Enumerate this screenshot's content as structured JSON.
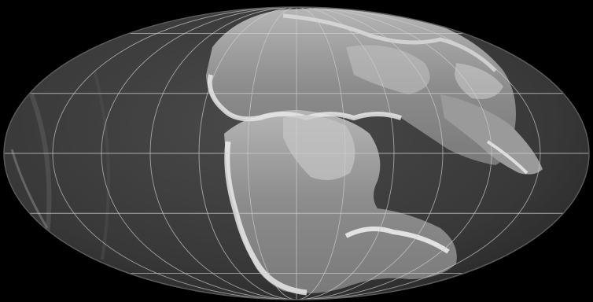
{
  "map": {
    "projection": "mollweide",
    "background_color": "#000000",
    "ocean_color": "#3a3a3a",
    "land_color": "#8a8a8a",
    "coast_highlight_color": "#e6e6e6",
    "graticule_color": "#cfcfcf",
    "labels": []
  }
}
